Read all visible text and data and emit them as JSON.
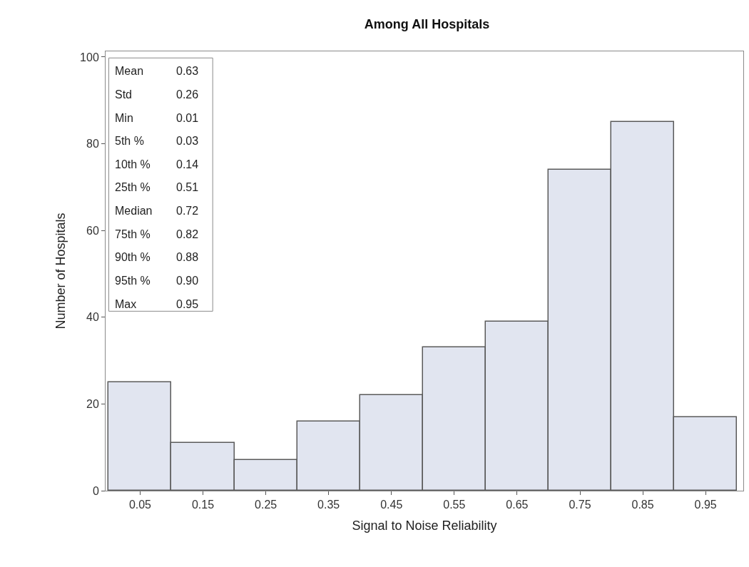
{
  "chart_data": {
    "type": "histogram",
    "title": "Among All Hospitals",
    "xlabel": "Signal to Noise Reliability",
    "ylabel": "Number of Hospitals",
    "bins": [
      0,
      0.1,
      0.2,
      0.3,
      0.4,
      0.5,
      0.6,
      0.7,
      0.8,
      0.9,
      1.0
    ],
    "values": [
      25,
      11,
      7,
      16,
      22,
      33,
      39,
      74,
      85,
      17
    ],
    "color": "#e1e5f0",
    "xlim": [
      -0.005,
      1.01
    ],
    "xticks": [
      0.05,
      0.15,
      0.25,
      0.35,
      0.45,
      0.55,
      0.65,
      0.75,
      0.85,
      0.95
    ],
    "ylim": [
      0,
      101.3
    ],
    "yticks": [
      0,
      20,
      40,
      60,
      80,
      100
    ],
    "annotations": [
      "Mean 0.63",
      "Std 0.26",
      "Min 0.01",
      "5th % 0.03",
      "10th % 0.14",
      "25th % 0.51",
      "Median 0.72",
      "75th % 0.82",
      "90th % 0.88",
      "95th % 0.90",
      "Max 0.95"
    ]
  }
}
